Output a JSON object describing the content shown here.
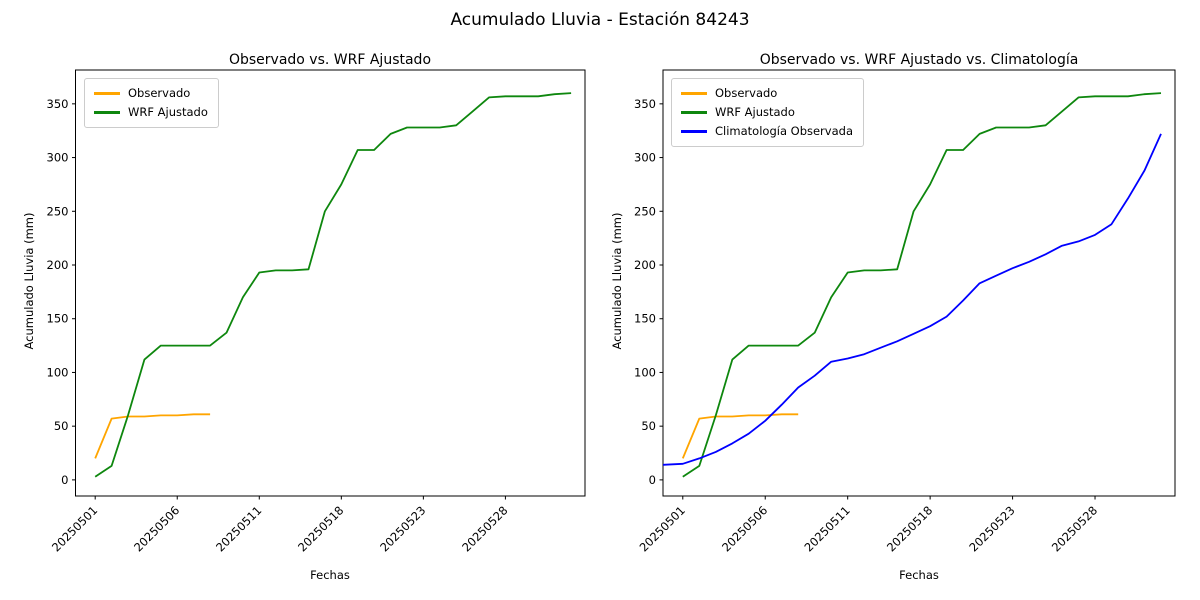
{
  "figure": {
    "title": "Acumulado Lluvia - Estación 84243"
  },
  "colors": {
    "observado": "#ffa500",
    "wrf_ajustado": "#0e870e",
    "climatologia": "#0000ff",
    "axis": "#000000",
    "legend_border": "#cccccc"
  },
  "chart_data": [
    {
      "type": "line",
      "title": "Observado vs. WRF Ajustado",
      "xlabel": "Fechas",
      "ylabel": "Acumulado Lluvia (mm)",
      "xlim": [
        -1.2,
        29.85
      ],
      "ylim": [
        -15,
        381.5
      ],
      "y_ticks": [
        0,
        50,
        100,
        150,
        200,
        250,
        300,
        350
      ],
      "x_tick_positions": [
        0,
        5,
        10,
        15,
        20,
        25
      ],
      "x_tick_labels": [
        "20250501",
        "20250506",
        "20250511",
        "20250518",
        "20250523",
        "20250528"
      ],
      "grid": false,
      "legend_position": "upper-left",
      "series": [
        {
          "name": "Observado",
          "color": "#ffa500",
          "x": [
            0,
            1,
            2,
            3,
            4,
            5,
            6,
            7
          ],
          "values": [
            20,
            57,
            59,
            59,
            60,
            60,
            61,
            61
          ]
        },
        {
          "name": "WRF Ajustado",
          "color": "#0e870e",
          "x": [
            0,
            1,
            2,
            3,
            4,
            5,
            6,
            7,
            8,
            9,
            10,
            11,
            12,
            13,
            14,
            15,
            16,
            17,
            18,
            19,
            20,
            21,
            22,
            23,
            24,
            25,
            26,
            27,
            28,
            29
          ],
          "values": [
            3,
            13,
            60,
            112,
            125,
            125,
            125,
            125,
            137,
            170,
            193,
            195,
            195,
            196,
            250,
            275,
            307,
            307,
            322,
            328,
            328,
            328,
            330,
            343,
            356,
            357,
            357,
            357,
            359,
            360
          ]
        }
      ]
    },
    {
      "type": "line",
      "title": "Observado vs. WRF Ajustado vs. Climatología",
      "xlabel": "Fechas",
      "ylabel": "Acumulado Lluvia (mm)",
      "xlim": [
        -1.2,
        29.85
      ],
      "ylim": [
        -15,
        381.5
      ],
      "y_ticks": [
        0,
        50,
        100,
        150,
        200,
        250,
        300,
        350
      ],
      "x_tick_positions": [
        0,
        5,
        10,
        15,
        20,
        25
      ],
      "x_tick_labels": [
        "20250501",
        "20250506",
        "20250511",
        "20250518",
        "20250523",
        "20250528"
      ],
      "grid": false,
      "legend_position": "upper-left",
      "series": [
        {
          "name": "Observado",
          "color": "#ffa500",
          "x": [
            0,
            1,
            2,
            3,
            4,
            5,
            6,
            7
          ],
          "values": [
            20,
            57,
            59,
            59,
            60,
            60,
            61,
            61
          ]
        },
        {
          "name": "WRF Ajustado",
          "color": "#0e870e",
          "x": [
            0,
            1,
            2,
            3,
            4,
            5,
            6,
            7,
            8,
            9,
            10,
            11,
            12,
            13,
            14,
            15,
            16,
            17,
            18,
            19,
            20,
            21,
            22,
            23,
            24,
            25,
            26,
            27,
            28,
            29
          ],
          "values": [
            3,
            13,
            60,
            112,
            125,
            125,
            125,
            125,
            137,
            170,
            193,
            195,
            195,
            196,
            250,
            275,
            307,
            307,
            322,
            328,
            328,
            328,
            330,
            343,
            356,
            357,
            357,
            357,
            359,
            360
          ]
        },
        {
          "name": "Climatología Observada",
          "color": "#0000ff",
          "x": [
            -1.2,
            0,
            1,
            2,
            3,
            4,
            5,
            6,
            7,
            8,
            9,
            10,
            11,
            12,
            13,
            14,
            15,
            16,
            17,
            18,
            19,
            20,
            21,
            22,
            23,
            24,
            25,
            26,
            27,
            28,
            29
          ],
          "values": [
            14,
            15,
            20,
            26,
            34,
            43,
            55,
            70,
            86,
            97,
            110,
            113,
            117,
            123,
            129,
            136,
            143,
            152,
            167,
            183,
            190,
            197,
            203,
            210,
            218,
            222,
            228,
            238,
            262,
            288,
            322
          ]
        }
      ]
    }
  ]
}
